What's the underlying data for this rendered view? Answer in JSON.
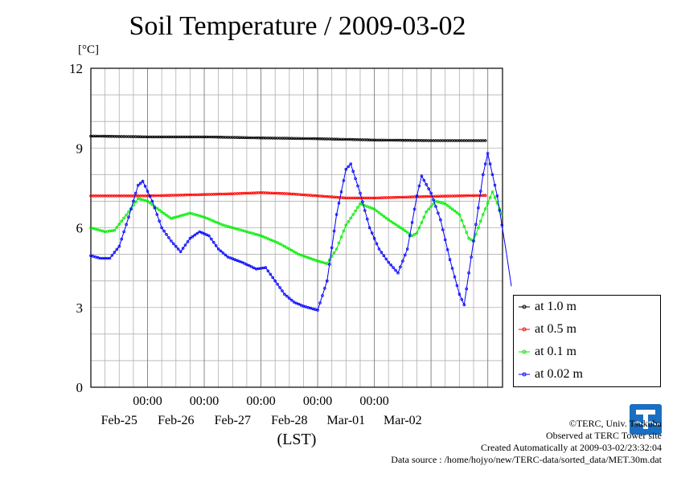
{
  "title": "Soil Temperature / 2009-03-02",
  "unit_label": "[°C]",
  "xlabel": "(LST)",
  "legend": [
    {
      "label": "at 1.0 m",
      "color": "#000000"
    },
    {
      "label": "at 0.5 m",
      "color": "#ff0000"
    },
    {
      "label": "at 0.1 m",
      "color": "#00ee00"
    },
    {
      "label": "at 0.02 m",
      "color": "#0000ff"
    }
  ],
  "credits": {
    "org": "©TERC, Univ. Tsukuba",
    "site": "Observed at TERC Tower site",
    "created": "Created Automatically at 2009-03-02/23:32:04",
    "source": "Data source : /home/hojyo/new/TERC-data/sorted_data/MET.30m.dat"
  },
  "logo_text": "TERC",
  "chart_data": {
    "type": "line",
    "ylim": [
      0,
      12
    ],
    "yticks": [
      0,
      3,
      6,
      9,
      12
    ],
    "xlim": [
      "2009-02-24 00:00",
      "2009-03-02 23:30"
    ],
    "xtick_labels": [
      "00:00",
      "00:00",
      "00:00",
      "00:00",
      "00:00"
    ],
    "date_labels": [
      "Feb-25",
      "Feb-26",
      "Feb-27",
      "Feb-28",
      "Mar-01",
      "Mar-02"
    ],
    "grid": true,
    "legend_position": "right-bottom",
    "series": [
      {
        "name": "at 1.0 m",
        "color": "#000000",
        "points": [
          [
            "2009-02-24 00:00",
            9.45
          ],
          [
            "2009-02-25 00:00",
            9.42
          ],
          [
            "2009-02-26 00:00",
            9.42
          ],
          [
            "2009-02-27 00:00",
            9.38
          ],
          [
            "2009-02-28 00:00",
            9.35
          ],
          [
            "2009-03-01 00:00",
            9.3
          ],
          [
            "2009-03-02 00:00",
            9.28
          ],
          [
            "2009-03-02 23:30",
            9.28
          ]
        ]
      },
      {
        "name": "at 0.5 m",
        "color": "#ff0000",
        "points": [
          [
            "2009-02-24 00:00",
            7.2
          ],
          [
            "2009-02-25 00:00",
            7.2
          ],
          [
            "2009-02-26 00:00",
            7.25
          ],
          [
            "2009-02-26 12:00",
            7.28
          ],
          [
            "2009-02-27 00:00",
            7.32
          ],
          [
            "2009-02-27 12:00",
            7.28
          ],
          [
            "2009-02-28 00:00",
            7.2
          ],
          [
            "2009-02-28 12:00",
            7.12
          ],
          [
            "2009-03-01 00:00",
            7.12
          ],
          [
            "2009-03-02 00:00",
            7.18
          ],
          [
            "2009-03-02 23:30",
            7.22
          ]
        ]
      },
      {
        "name": "at 0.1 m",
        "color": "#00ee00",
        "points": [
          [
            "2009-02-24 00:00",
            6.0
          ],
          [
            "2009-02-24 06:00",
            5.85
          ],
          [
            "2009-02-24 10:00",
            5.9
          ],
          [
            "2009-02-24 16:00",
            6.6
          ],
          [
            "2009-02-24 20:00",
            7.1
          ],
          [
            "2009-02-25 00:00",
            7.0
          ],
          [
            "2009-02-25 06:00",
            6.6
          ],
          [
            "2009-02-25 10:00",
            6.35
          ],
          [
            "2009-02-25 14:00",
            6.45
          ],
          [
            "2009-02-25 18:00",
            6.55
          ],
          [
            "2009-02-26 00:00",
            6.4
          ],
          [
            "2009-02-26 08:00",
            6.1
          ],
          [
            "2009-02-26 16:00",
            5.9
          ],
          [
            "2009-02-27 00:00",
            5.7
          ],
          [
            "2009-02-27 08:00",
            5.4
          ],
          [
            "2009-02-27 16:00",
            5.0
          ],
          [
            "2009-02-28 00:00",
            4.75
          ],
          [
            "2009-02-28 04:00",
            4.65
          ],
          [
            "2009-02-28 08:00",
            5.2
          ],
          [
            "2009-02-28 12:00",
            6.1
          ],
          [
            "2009-02-28 18:00",
            6.9
          ],
          [
            "2009-03-01 00:00",
            6.7
          ],
          [
            "2009-03-01 06:00",
            6.3
          ],
          [
            "2009-03-01 12:00",
            5.95
          ],
          [
            "2009-03-01 16:00",
            5.7
          ],
          [
            "2009-03-01 18:00",
            5.8
          ],
          [
            "2009-03-01 22:00",
            6.6
          ],
          [
            "2009-03-02 02:00",
            7.0
          ],
          [
            "2009-03-02 06:00",
            6.9
          ],
          [
            "2009-03-02 12:00",
            6.5
          ],
          [
            "2009-03-02 16:00",
            5.6
          ],
          [
            "2009-03-02 18:00",
            5.5
          ],
          [
            "2009-03-02 22:00",
            6.5
          ],
          [
            "2009-03-03 02:00",
            7.35
          ],
          [
            "2009-03-03 06:00",
            6.5
          ]
        ]
      },
      {
        "name": "at 0.02 m",
        "color": "#0000ff",
        "points": [
          [
            "2009-02-24 00:00",
            4.95
          ],
          [
            "2009-02-24 04:00",
            4.85
          ],
          [
            "2009-02-24 08:00",
            4.85
          ],
          [
            "2009-02-24 12:00",
            5.3
          ],
          [
            "2009-02-24 16:00",
            6.4
          ],
          [
            "2009-02-24 20:00",
            7.6
          ],
          [
            "2009-02-24 22:00",
            7.75
          ],
          [
            "2009-02-25 02:00",
            7.0
          ],
          [
            "2009-02-25 06:00",
            6.0
          ],
          [
            "2009-02-25 10:00",
            5.5
          ],
          [
            "2009-02-25 14:00",
            5.1
          ],
          [
            "2009-02-25 18:00",
            5.6
          ],
          [
            "2009-02-25 22:00",
            5.85
          ],
          [
            "2009-02-26 02:00",
            5.7
          ],
          [
            "2009-02-26 06:00",
            5.2
          ],
          [
            "2009-02-26 10:00",
            4.9
          ],
          [
            "2009-02-26 16:00",
            4.7
          ],
          [
            "2009-02-26 22:00",
            4.45
          ],
          [
            "2009-02-27 02:00",
            4.5
          ],
          [
            "2009-02-27 06:00",
            4.0
          ],
          [
            "2009-02-27 10:00",
            3.5
          ],
          [
            "2009-02-27 14:00",
            3.2
          ],
          [
            "2009-02-27 18:00",
            3.05
          ],
          [
            "2009-02-27 22:00",
            2.95
          ],
          [
            "2009-02-28 00:00",
            2.9
          ],
          [
            "2009-02-28 04:00",
            4.0
          ],
          [
            "2009-02-28 08:00",
            6.5
          ],
          [
            "2009-02-28 12:00",
            8.2
          ],
          [
            "2009-02-28 14:00",
            8.4
          ],
          [
            "2009-02-28 18:00",
            7.3
          ],
          [
            "2009-02-28 22:00",
            6.0
          ],
          [
            "2009-03-01 02:00",
            5.2
          ],
          [
            "2009-03-01 06:00",
            4.7
          ],
          [
            "2009-03-01 10:00",
            4.3
          ],
          [
            "2009-03-01 14:00",
            5.2
          ],
          [
            "2009-03-01 18:00",
            7.2
          ],
          [
            "2009-03-01 20:00",
            7.95
          ],
          [
            "2009-03-02 00:00",
            7.3
          ],
          [
            "2009-03-02 04:00",
            6.3
          ],
          [
            "2009-03-02 08:00",
            4.8
          ],
          [
            "2009-03-02 12:00",
            3.5
          ],
          [
            "2009-03-02 14:00",
            3.1
          ],
          [
            "2009-03-02 18:00",
            5.5
          ],
          [
            "2009-03-02 22:00",
            8.0
          ],
          [
            "2009-03-03 00:00",
            8.8
          ],
          [
            "2009-03-03 04:00",
            7.2
          ],
          [
            "2009-03-03 08:00",
            5.0
          ],
          [
            "2009-03-03 10:00",
            3.8
          ]
        ]
      }
    ]
  }
}
